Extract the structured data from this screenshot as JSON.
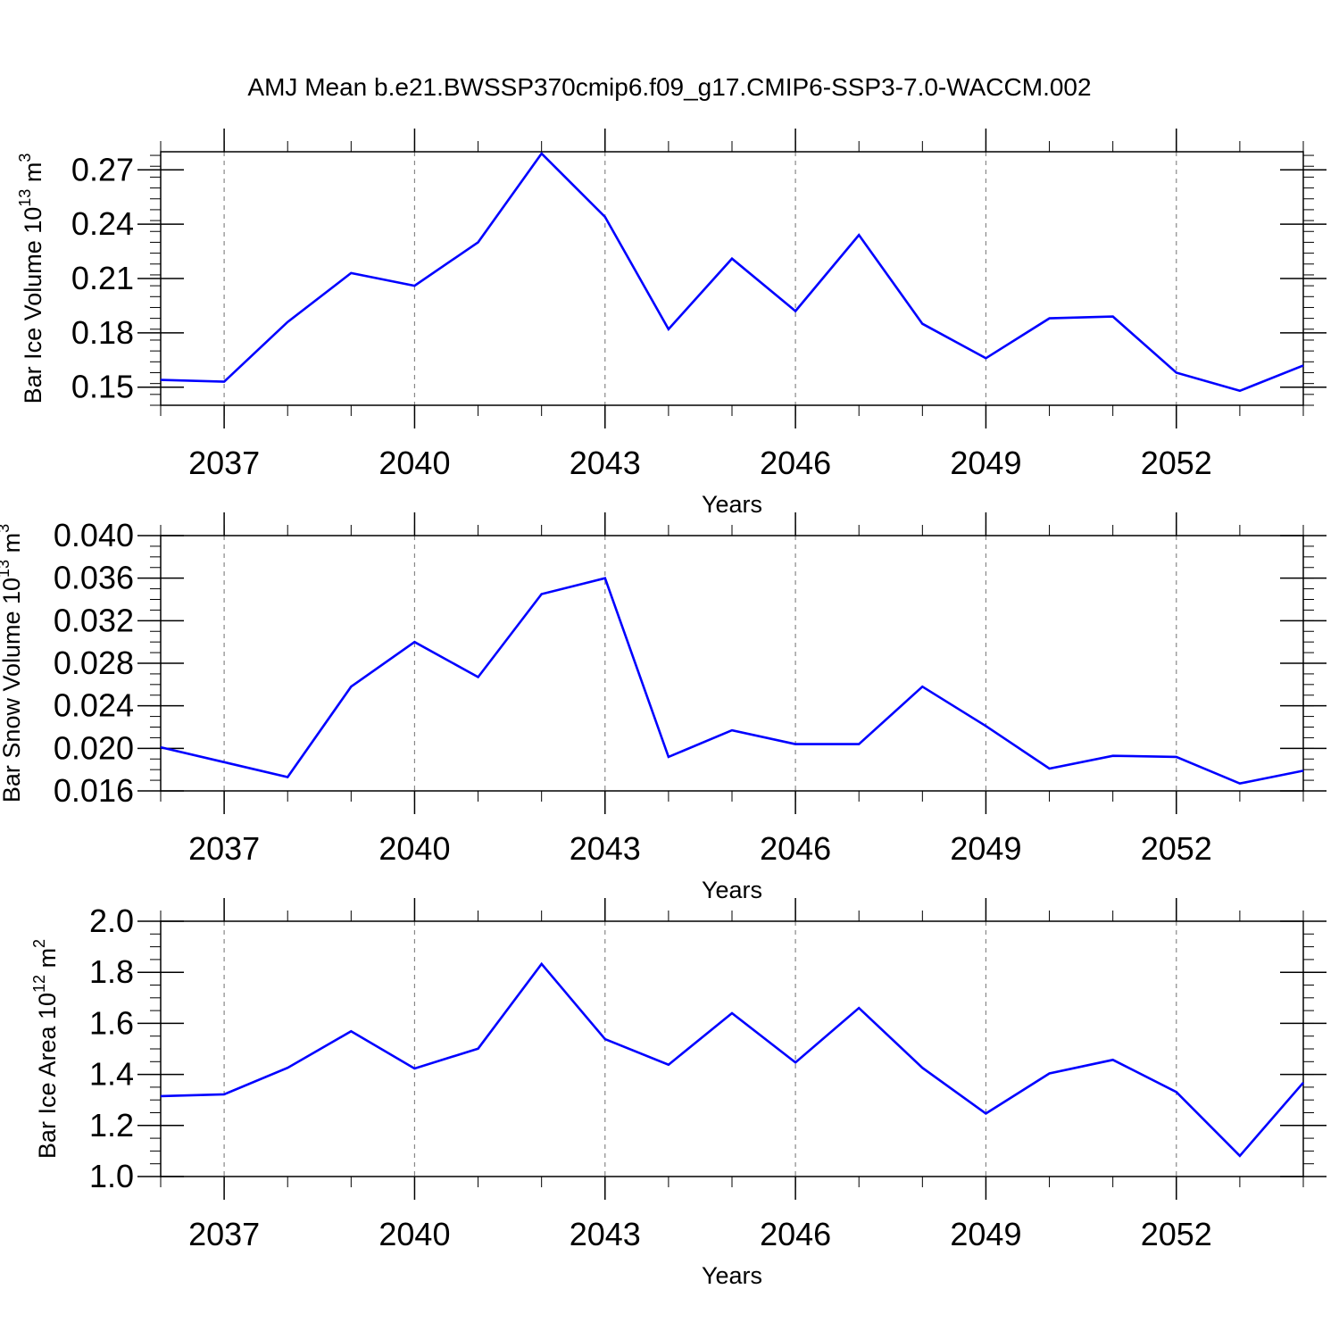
{
  "title": "AMJ Mean b.e21.BWSSP370cmip6.f09_g17.CMIP6-SSP3-7.0-WACCM.002",
  "colors": {
    "line": "#0000ff",
    "axis": "#000000",
    "grid": "#888888"
  },
  "chart_data": [
    {
      "type": "line",
      "xlabel": "Years",
      "ylabel": "Bar Ice Volume 10",
      "ylabel_exp": "13",
      "ylabel_unit": " m",
      "ylabel_unit_exp": "3",
      "xlim": [
        2036,
        2054
      ],
      "ylim": [
        0.14,
        0.28
      ],
      "yticks": [
        0.15,
        0.18,
        0.21,
        0.24,
        0.27
      ],
      "ytick_labels": [
        "0.15",
        "0.18",
        "0.21",
        "0.24",
        "0.27"
      ],
      "xticks": [
        2037,
        2040,
        2043,
        2046,
        2049,
        2052
      ],
      "xtick_labels": [
        "2037",
        "2040",
        "2043",
        "2046",
        "2049",
        "2052"
      ],
      "x": [
        2036,
        2037,
        2038,
        2039,
        2040,
        2041,
        2042,
        2043,
        2044,
        2045,
        2046,
        2047,
        2048,
        2049,
        2050,
        2051,
        2052,
        2053,
        2054
      ],
      "y": [
        0.154,
        0.153,
        0.186,
        0.213,
        0.206,
        0.23,
        0.279,
        0.244,
        0.182,
        0.221,
        0.192,
        0.234,
        0.185,
        0.166,
        0.188,
        0.189,
        0.158,
        0.148,
        0.162
      ]
    },
    {
      "type": "line",
      "xlabel": "Years",
      "ylabel": "Bar Snow Volume 10",
      "ylabel_exp": "13",
      "ylabel_unit": " m",
      "ylabel_unit_exp": "3",
      "xlim": [
        2036,
        2054
      ],
      "ylim": [
        0.016,
        0.04
      ],
      "yticks": [
        0.016,
        0.02,
        0.024,
        0.028,
        0.032,
        0.036,
        0.04
      ],
      "ytick_labels": [
        "0.016",
        "0.020",
        "0.024",
        "0.028",
        "0.032",
        "0.036",
        "0.040"
      ],
      "xticks": [
        2037,
        2040,
        2043,
        2046,
        2049,
        2052
      ],
      "xtick_labels": [
        "2037",
        "2040",
        "2043",
        "2046",
        "2049",
        "2052"
      ],
      "x": [
        2036,
        2037,
        2038,
        2039,
        2040,
        2041,
        2042,
        2043,
        2044,
        2045,
        2046,
        2047,
        2048,
        2049,
        2050,
        2051,
        2052,
        2053,
        2054
      ],
      "y": [
        0.0201,
        0.0187,
        0.0173,
        0.0258,
        0.03,
        0.0267,
        0.0345,
        0.036,
        0.0192,
        0.0217,
        0.0204,
        0.0204,
        0.0258,
        0.0221,
        0.0181,
        0.0193,
        0.0192,
        0.0167,
        0.0179
      ]
    },
    {
      "type": "line",
      "xlabel": "Years",
      "ylabel": "Bar Ice Area 10",
      "ylabel_exp": "12",
      "ylabel_unit": " m",
      "ylabel_unit_exp": "2",
      "xlim": [
        2036,
        2054
      ],
      "ylim": [
        1.0,
        2.0
      ],
      "yticks": [
        1.0,
        1.2,
        1.4,
        1.6,
        1.8,
        2.0
      ],
      "ytick_labels": [
        "1.0",
        "1.2",
        "1.4",
        "1.6",
        "1.8",
        "2.0"
      ],
      "xticks": [
        2037,
        2040,
        2043,
        2046,
        2049,
        2052
      ],
      "xtick_labels": [
        "2037",
        "2040",
        "2043",
        "2046",
        "2049",
        "2052"
      ],
      "x": [
        2036,
        2037,
        2038,
        2039,
        2040,
        2041,
        2042,
        2043,
        2044,
        2045,
        2046,
        2047,
        2048,
        2049,
        2050,
        2051,
        2052,
        2053,
        2054
      ],
      "y": [
        1.315,
        1.322,
        1.426,
        1.569,
        1.423,
        1.501,
        1.833,
        1.538,
        1.438,
        1.64,
        1.447,
        1.66,
        1.426,
        1.247,
        1.404,
        1.457,
        1.331,
        1.081,
        1.368
      ]
    }
  ]
}
